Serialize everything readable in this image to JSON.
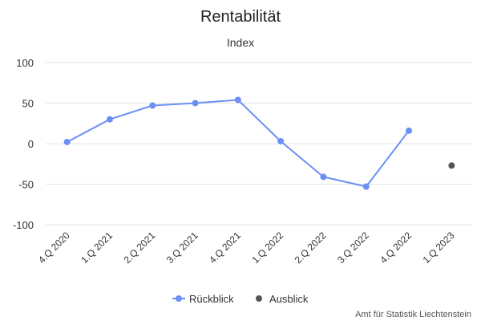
{
  "chart_data": {
    "type": "line",
    "title": "Rentabilität",
    "subtitle": "Index",
    "categories": [
      "4.Q 2020",
      "1.Q 2021",
      "2.Q 2021",
      "3.Q 2021",
      "4.Q 2021",
      "1.Q 2022",
      "2.Q 2022",
      "3.Q 2022",
      "4.Q 2022",
      "1.Q 2023"
    ],
    "ylim": [
      -100,
      100
    ],
    "yticks": [
      100,
      50,
      0,
      -50,
      -100
    ],
    "grid": true,
    "legend_position": "bottom-center",
    "series": [
      {
        "name": "Rückblick",
        "color": "#6b8ff5",
        "line": true,
        "values": [
          2,
          30,
          47,
          50,
          54,
          3,
          -41,
          -53,
          16,
          null
        ]
      },
      {
        "name": "Ausblick",
        "color": "#555555",
        "line": false,
        "values": [
          null,
          null,
          null,
          null,
          null,
          null,
          null,
          null,
          null,
          -27
        ]
      }
    ],
    "credit": "Amt für Statistik Liechtenstein"
  }
}
